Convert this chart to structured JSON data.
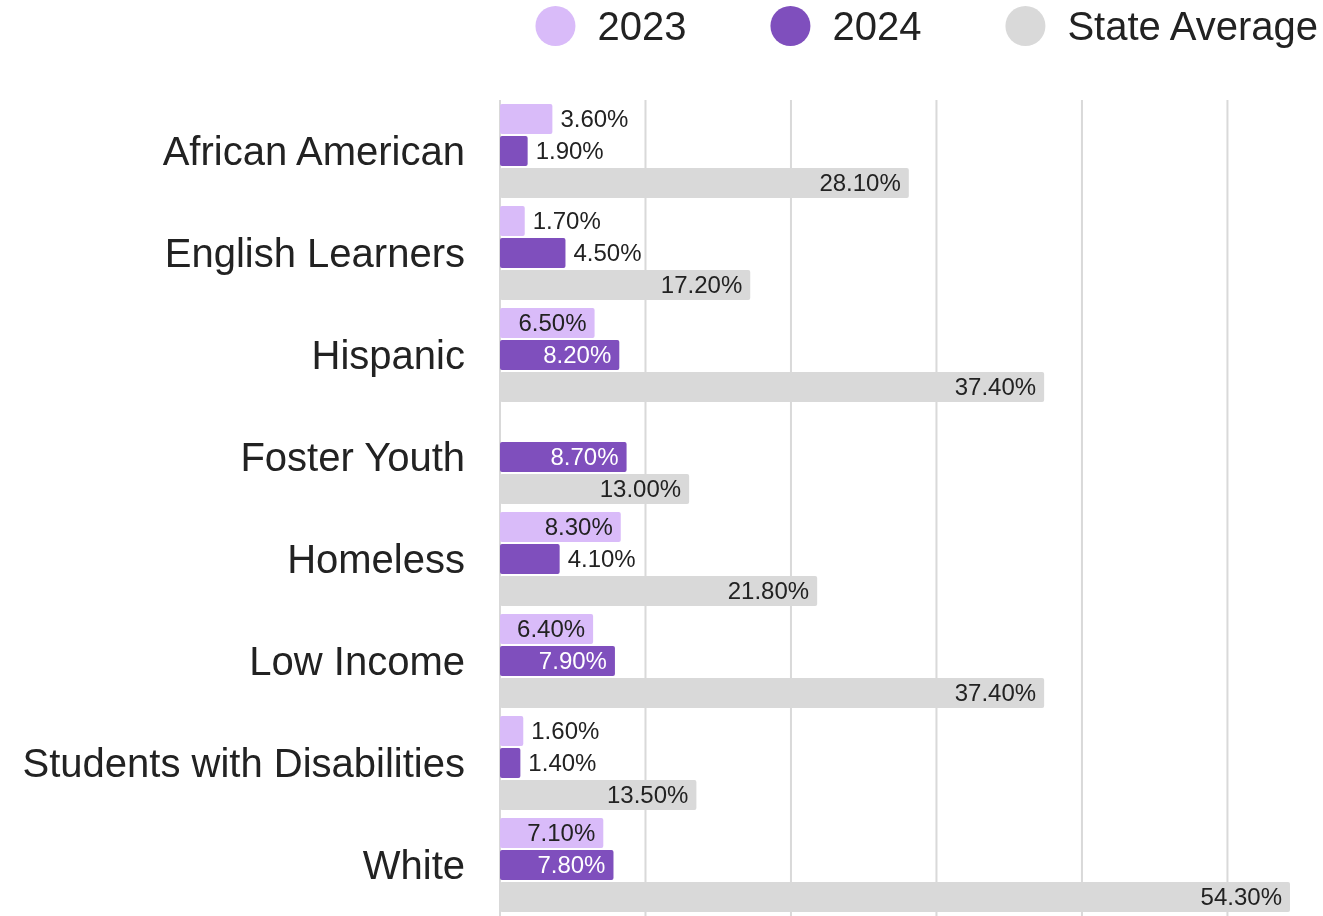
{
  "chart_data": {
    "type": "bar",
    "orientation": "horizontal",
    "categories": [
      "African American",
      "English Learners",
      "Hispanic",
      "Foster Youth",
      "Homeless",
      "Low Income",
      "Students with Disabilities",
      "White"
    ],
    "series": [
      {
        "name": "2023",
        "color": "#d9bbf9",
        "values": [
          3.6,
          1.7,
          6.5,
          null,
          8.3,
          6.4,
          1.6,
          7.1
        ],
        "value_labels": [
          "3.60%",
          "1.70%",
          "6.50%",
          null,
          "8.30%",
          "6.40%",
          "1.60%",
          "7.10%"
        ]
      },
      {
        "name": "2024",
        "color": "#7f4fbd",
        "values": [
          1.9,
          4.5,
          8.2,
          8.7,
          4.1,
          7.9,
          1.4,
          7.8
        ],
        "value_labels": [
          "1.90%",
          "4.50%",
          "8.20%",
          "8.70%",
          "4.10%",
          "7.90%",
          "1.40%",
          "7.80%"
        ]
      },
      {
        "name": "State Average",
        "color": "#d9d9d9",
        "values": [
          28.1,
          17.2,
          37.4,
          13.0,
          21.8,
          37.4,
          13.5,
          54.3
        ],
        "value_labels": [
          "28.10%",
          "17.20%",
          "37.40%",
          "13.00%",
          "21.80%",
          "37.40%",
          "13.50%",
          "54.30%"
        ]
      }
    ],
    "xticks": [
      {
        "value": 0,
        "label": null
      },
      {
        "value": 10,
        "label": null
      },
      {
        "value": 20,
        "label": null
      },
      {
        "value": 30,
        "label": null
      },
      {
        "value": 40,
        "label": null
      },
      {
        "value": 50,
        "label": null
      }
    ],
    "grid": "x",
    "legend": "top",
    "tick_labels": "y"
  }
}
